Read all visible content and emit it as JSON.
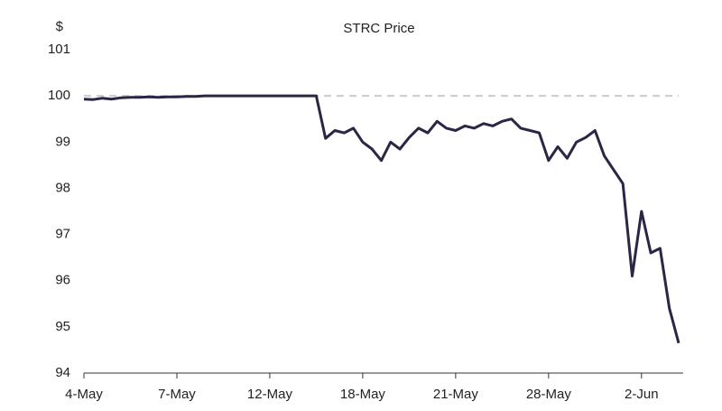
{
  "chart_data": {
    "type": "line",
    "title": "STRC Price",
    "y_label": "$",
    "categories": [
      "4-May",
      null,
      null,
      null,
      null,
      null,
      null,
      null,
      null,
      null,
      "7-May",
      null,
      null,
      null,
      null,
      null,
      null,
      null,
      null,
      null,
      "12-May",
      null,
      null,
      null,
      null,
      null,
      null,
      null,
      null,
      null,
      "18-May",
      null,
      null,
      null,
      null,
      null,
      null,
      null,
      null,
      null,
      "21-May",
      null,
      null,
      null,
      null,
      null,
      null,
      null,
      null,
      null,
      "28-May",
      null,
      null,
      null,
      null,
      null,
      null,
      null,
      null,
      null,
      "2-Jun",
      null,
      null,
      null,
      null
    ],
    "values": [
      99.93,
      99.92,
      99.95,
      99.93,
      99.96,
      99.97,
      99.97,
      99.98,
      99.97,
      99.98,
      99.98,
      99.99,
      99.99,
      100,
      100,
      100,
      100,
      100,
      100,
      100,
      100,
      100,
      100,
      100,
      100,
      100,
      99.08,
      99.25,
      99.2,
      99.3,
      99.0,
      98.85,
      98.6,
      99.0,
      98.85,
      99.1,
      99.3,
      99.2,
      99.45,
      99.3,
      99.25,
      99.35,
      99.3,
      99.4,
      99.35,
      99.45,
      99.5,
      99.3,
      99.25,
      99.2,
      98.6,
      98.9,
      98.65,
      99.0,
      99.1,
      99.25,
      98.7,
      98.4,
      98.1,
      96.1,
      97.5,
      96.6,
      96.7,
      95.4,
      94.65
    ],
    "color": "#2b2645",
    "reference_line": 100,
    "ylim": [
      94,
      101
    ],
    "yticks": [
      94,
      95,
      96,
      97,
      98,
      99,
      100,
      101
    ]
  }
}
